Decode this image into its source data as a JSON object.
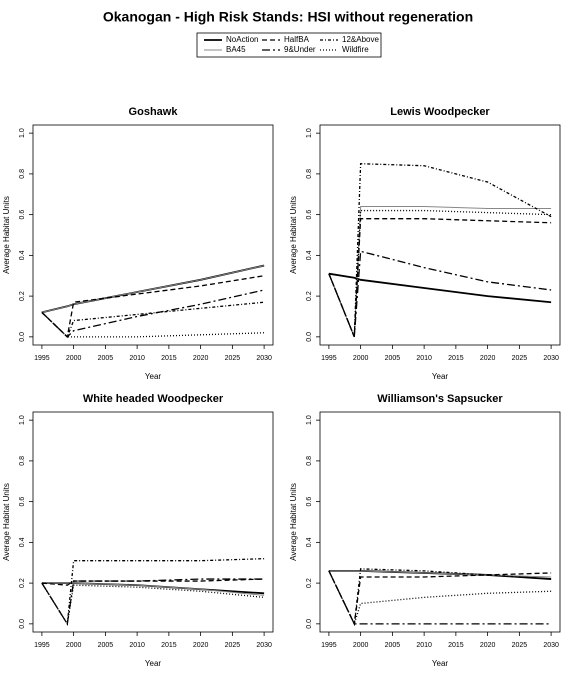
{
  "title": "Okanogan  - High Risk Stands: HSI without regeneration",
  "legend": [
    {
      "name": "NoAction",
      "color": "#000000",
      "width": 1.8,
      "dash": "none"
    },
    {
      "name": "BA45",
      "color": "#888888",
      "width": 1,
      "dash": "none"
    },
    {
      "name": "HalfBA",
      "color": "#000000",
      "width": 1.3,
      "dash": "5 3"
    },
    {
      "name": "9&Under",
      "color": "#000000",
      "width": 1.3,
      "dash": "8 3 2 3"
    },
    {
      "name": "12&Above",
      "color": "#000000",
      "width": 1.3,
      "dash": "3 2 1 2"
    },
    {
      "name": "Wildfire",
      "color": "#000000",
      "width": 1.3,
      "dash": "1 2"
    }
  ],
  "chart_data": [
    {
      "type": "line",
      "title": "Goshawk",
      "x_label": "Year",
      "y_label": "Average Habitat Units",
      "x": [
        1995,
        1999,
        2000,
        2010,
        2020,
        2030
      ],
      "xlim": [
        1993.6,
        2031.4
      ],
      "ylim": [
        -0.04,
        1.04
      ],
      "xticks": [
        1995,
        2000,
        2005,
        2010,
        2015,
        2020,
        2025,
        2030
      ],
      "yticks": [
        {
          "value": 0,
          "label": "0.0"
        },
        0.2,
        0.4,
        0.6,
        0.8,
        {
          "value": 1,
          "label": "1.0"
        }
      ],
      "series": [
        {
          "values": [
            0.12,
            0.15,
            0.16,
            0.22,
            0.28,
            0.35
          ]
        },
        {
          "values": [
            0.12,
            0.15,
            0.16,
            0.22,
            0.28,
            0.35
          ]
        },
        {
          "values": [
            0.12,
            0.0,
            0.17,
            0.21,
            0.25,
            0.3
          ]
        },
        {
          "values": [
            0.12,
            0.0,
            0.03,
            0.1,
            0.16,
            0.23
          ]
        },
        {
          "values": [
            0.12,
            0.0,
            0.08,
            0.11,
            0.14,
            0.17
          ]
        },
        {
          "values": [
            0.12,
            0.0,
            0.0,
            0.0,
            0.01,
            0.02
          ]
        }
      ]
    },
    {
      "type": "line",
      "title": "Lewis Woodpecker",
      "x_label": "Year",
      "y_label": "Average Habitat Units",
      "x": [
        1995,
        1999,
        2000,
        2010,
        2020,
        2030
      ],
      "xlim": [
        1993.6,
        2031.4
      ],
      "ylim": [
        -0.04,
        1.04
      ],
      "xticks": [
        1995,
        2000,
        2005,
        2010,
        2015,
        2020,
        2025,
        2030
      ],
      "yticks": [
        {
          "value": 0,
          "label": "0.0"
        },
        0.2,
        0.4,
        0.6,
        0.8,
        {
          "value": 1,
          "label": "1.0"
        }
      ],
      "series": [
        {
          "values": [
            0.31,
            0.29,
            0.28,
            0.24,
            0.2,
            0.17
          ]
        },
        {
          "values": [
            0.31,
            0.0,
            0.64,
            0.64,
            0.63,
            0.63
          ]
        },
        {
          "values": [
            0.31,
            0.0,
            0.58,
            0.58,
            0.57,
            0.56
          ]
        },
        {
          "values": [
            0.31,
            0.0,
            0.42,
            0.34,
            0.27,
            0.23
          ]
        },
        {
          "values": [
            0.31,
            0.0,
            0.85,
            0.84,
            0.76,
            0.59
          ]
        },
        {
          "values": [
            0.31,
            0.0,
            0.62,
            0.62,
            0.61,
            0.6
          ]
        }
      ]
    },
    {
      "type": "line",
      "title": "White headed Woodpecker",
      "x_label": "Year",
      "y_label": "Average Habitat Units",
      "x": [
        1995,
        1999,
        2000,
        2010,
        2020,
        2030
      ],
      "xlim": [
        1993.6,
        2031.4
      ],
      "ylim": [
        -0.04,
        1.04
      ],
      "xticks": [
        1995,
        2000,
        2005,
        2010,
        2015,
        2020,
        2025,
        2030
      ],
      "yticks": [
        {
          "value": 0,
          "label": "0.0"
        },
        0.2,
        0.4,
        0.6,
        0.8,
        {
          "value": 1,
          "label": "1.0"
        }
      ],
      "series": [
        {
          "values": [
            0.2,
            0.2,
            0.2,
            0.19,
            0.17,
            0.15
          ]
        },
        {
          "values": [
            0.2,
            0.2,
            0.2,
            0.19,
            0.17,
            0.14
          ]
        },
        {
          "values": [
            0.2,
            0.19,
            0.21,
            0.21,
            0.21,
            0.22
          ]
        },
        {
          "values": [
            0.2,
            0.0,
            0.21,
            0.21,
            0.22,
            0.22
          ]
        },
        {
          "values": [
            0.2,
            0.0,
            0.31,
            0.31,
            0.31,
            0.32
          ]
        },
        {
          "values": [
            0.2,
            0.0,
            0.19,
            0.18,
            0.16,
            0.13
          ]
        }
      ]
    },
    {
      "type": "line",
      "title": "Williamson's Sapsucker",
      "x_label": "Year",
      "y_label": "Average Habitat Units",
      "x": [
        1995,
        1999,
        2000,
        2010,
        2020,
        2030
      ],
      "xlim": [
        1993.6,
        2031.4
      ],
      "ylim": [
        -0.04,
        1.04
      ],
      "xticks": [
        1995,
        2000,
        2005,
        2010,
        2015,
        2020,
        2025,
        2030
      ],
      "yticks": [
        {
          "value": 0,
          "label": "0.0"
        },
        0.2,
        0.4,
        0.6,
        0.8,
        {
          "value": 1,
          "label": "1.0"
        }
      ],
      "series": [
        {
          "values": [
            0.26,
            0.26,
            0.26,
            0.25,
            0.24,
            0.22
          ]
        },
        {
          "values": [
            0.26,
            0.26,
            0.26,
            0.25,
            0.24,
            0.23
          ]
        },
        {
          "values": [
            0.26,
            0.0,
            0.23,
            0.23,
            0.24,
            0.25
          ]
        },
        {
          "values": [
            0.26,
            0.0,
            0.0,
            0.0,
            0.0,
            0.0
          ]
        },
        {
          "values": [
            0.26,
            0.0,
            0.27,
            0.26,
            0.24,
            0.22
          ]
        },
        {
          "values": [
            0.26,
            0.0,
            0.1,
            0.13,
            0.15,
            0.16
          ]
        }
      ]
    }
  ]
}
